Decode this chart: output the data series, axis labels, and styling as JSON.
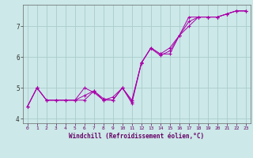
{
  "title": "",
  "xlabel": "Windchill (Refroidissement éolien,°C)",
  "ylabel": "",
  "background_color": "#cce8e8",
  "line_color": "#aa00aa",
  "grid_color": "#aacccc",
  "xlim": [
    -0.5,
    23.5
  ],
  "ylim": [
    3.85,
    7.7
  ],
  "yticks": [
    4,
    5,
    6,
    7
  ],
  "xticks": [
    0,
    1,
    2,
    3,
    4,
    5,
    6,
    7,
    8,
    9,
    10,
    11,
    12,
    13,
    14,
    15,
    16,
    17,
    18,
    19,
    20,
    21,
    22,
    23
  ],
  "series1_x": [
    0,
    1,
    2,
    3,
    4,
    5,
    6,
    7,
    8,
    9,
    10,
    11,
    12,
    13,
    14,
    15,
    16,
    17,
    18,
    19,
    20,
    21,
    22,
    23
  ],
  "series1_y": [
    4.4,
    5.0,
    4.6,
    4.6,
    4.6,
    4.6,
    4.6,
    4.9,
    4.6,
    4.6,
    5.0,
    4.5,
    5.8,
    6.3,
    6.1,
    6.3,
    6.7,
    7.3,
    7.3,
    7.3,
    7.3,
    7.4,
    7.5,
    7.5
  ],
  "series2_x": [
    0,
    1,
    2,
    3,
    4,
    5,
    6,
    7,
    8,
    9,
    10,
    11,
    12,
    13,
    14,
    15,
    16,
    17,
    18,
    19,
    20,
    21,
    22,
    23
  ],
  "series2_y": [
    4.4,
    5.0,
    4.6,
    4.6,
    4.6,
    4.6,
    5.0,
    4.85,
    4.6,
    4.7,
    5.0,
    4.6,
    5.8,
    6.3,
    6.1,
    6.1,
    6.7,
    7.0,
    7.3,
    7.3,
    7.3,
    7.4,
    7.5,
    7.5
  ],
  "series3_x": [
    0,
    1,
    2,
    3,
    4,
    5,
    6,
    7,
    8,
    9,
    10,
    11,
    12,
    13,
    14,
    15,
    16,
    17,
    18,
    19,
    20,
    21,
    22,
    23
  ],
  "series3_y": [
    4.4,
    5.0,
    4.6,
    4.6,
    4.6,
    4.6,
    4.75,
    4.9,
    4.65,
    4.6,
    5.0,
    4.55,
    5.82,
    6.28,
    6.05,
    6.2,
    6.7,
    7.15,
    7.3,
    7.3,
    7.3,
    7.4,
    7.5,
    7.5
  ]
}
